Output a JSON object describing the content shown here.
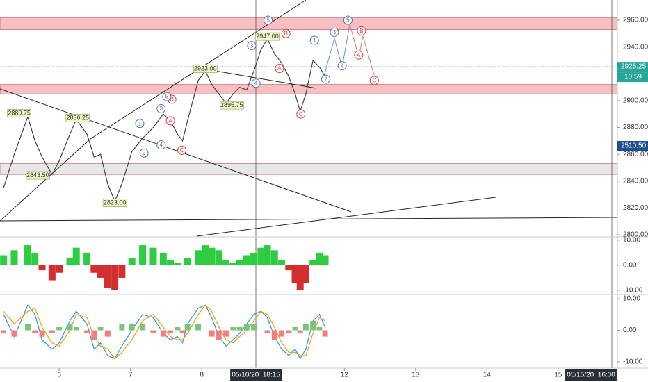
{
  "chart_data": [
    {
      "type": "line",
      "color": "#3f3f3f",
      "x": [
        0.22,
        0.37,
        0.56,
        0.66,
        0.76,
        0.9,
        1.0,
        1.15,
        1.24,
        1.39,
        1.49,
        1.58,
        1.68,
        1.78,
        1.88,
        2.02,
        2.17,
        2.32,
        2.46,
        2.56,
        2.66,
        2.73,
        2.8,
        2.95,
        3.05,
        3.14,
        3.24,
        3.34,
        3.44,
        3.53,
        3.63,
        3.73,
        3.83,
        3.92,
        4.02,
        4.12,
        4.22,
        4.31,
        4.38,
        4.46,
        4.56,
        4.65,
        4.73
      ],
      "values": [
        2835,
        2860,
        2888,
        2870,
        2858,
        2845,
        2855,
        2875,
        2886,
        2875,
        2858,
        2860,
        2838,
        2825,
        2838,
        2862,
        2872,
        2880,
        2890,
        2885,
        2875,
        2870,
        2885,
        2915,
        2922,
        2912,
        2905,
        2898,
        2905,
        2910,
        2908,
        2922,
        2938,
        2946,
        2935,
        2928,
        2918,
        2905,
        2892,
        2905,
        2930,
        2925,
        2918
      ],
      "xlim": [
        0.17,
        8.83
      ],
      "xticks": [
        {
          "value": 1,
          "label": "6"
        },
        {
          "value": 2,
          "label": "7"
        },
        {
          "value": 3,
          "label": "8"
        },
        {
          "value": 5,
          "label": "12"
        },
        {
          "value": 6,
          "label": "13"
        },
        {
          "value": 7,
          "label": "14"
        },
        {
          "value": 8,
          "label": "15"
        }
      ],
      "cursor_labels": [
        {
          "value": 3.76,
          "label": "05/10/20  18:15"
        },
        {
          "value": 8.46,
          "label": "05/15/20  16:00"
        }
      ],
      "ylim": [
        2799,
        2975
      ],
      "yticks": [
        {
          "value": 2800,
          "label": "2800.00"
        },
        {
          "value": 2820,
          "label": "2820.00"
        },
        {
          "value": 2840,
          "label": "2840.00"
        },
        {
          "value": 2860,
          "label": "2860.00"
        },
        {
          "value": 2880,
          "label": "2880.00"
        },
        {
          "value": 2900,
          "label": "2900.00"
        },
        {
          "value": 2920,
          "label": "2920.00"
        },
        {
          "value": 2940,
          "label": "2940.00"
        },
        {
          "value": 2960,
          "label": "2960.00"
        }
      ],
      "zones": [
        {
          "from": 2953,
          "to": 2962,
          "color": "#f4b4b6"
        },
        {
          "from": 2905,
          "to": 2912,
          "color": "#f4b4b6"
        },
        {
          "from": 2845,
          "to": 2853,
          "color": "#e3e3e3"
        }
      ],
      "last_price": {
        "value": 2925.25,
        "label": "2925.25"
      },
      "countdown": "10:59",
      "other_price": "2510.50",
      "price_labels": [
        {
          "x": 0.44,
          "value": 2889.75,
          "label": "2889.75"
        },
        {
          "x": 1.26,
          "value": 2886.25,
          "label": "2886.25"
        },
        {
          "x": 0.7,
          "value": 2843.5,
          "label": "2843.50"
        },
        {
          "x": 1.78,
          "value": 2823.0,
          "label": "2823.00"
        },
        {
          "x": 3.05,
          "value": 2923.0,
          "label": "2923.00"
        },
        {
          "x": 3.42,
          "value": 2895.75,
          "label": "2895.75"
        },
        {
          "x": 3.92,
          "value": 2947.0,
          "label": "2947.00"
        }
      ],
      "wave_labels": [
        {
          "label": "5",
          "x": 3.93,
          "y": 2960,
          "color": "#5a6fa8"
        },
        {
          "label": "B",
          "x": 4.18,
          "y": 2950,
          "color": "#e53935"
        },
        {
          "label": "A",
          "x": 4.09,
          "y": 2924,
          "color": "#e53935"
        },
        {
          "label": "C",
          "x": 4.39,
          "y": 2890,
          "color": "#e53935"
        },
        {
          "label": "1",
          "x": 4.58,
          "y": 2945,
          "color": "#5a6fa8"
        },
        {
          "label": "3",
          "x": 4.86,
          "y": 2951,
          "color": "#5a6fa8"
        },
        {
          "label": "5",
          "x": 5.05,
          "y": 2960,
          "color": "#5a6fa8"
        },
        {
          "label": "B",
          "x": 5.24,
          "y": 2952,
          "color": "#e53935"
        },
        {
          "label": "A",
          "x": 5.2,
          "y": 2934,
          "color": "#e53935"
        },
        {
          "label": "4",
          "x": 4.97,
          "y": 2926,
          "color": "#5a6fa8"
        },
        {
          "label": "2",
          "x": 4.74,
          "y": 2916,
          "color": "#5a6fa8"
        },
        {
          "label": "C",
          "x": 5.42,
          "y": 2915,
          "color": "#e53935"
        },
        {
          "label": "3",
          "x": 3.7,
          "y": 2941,
          "color": "#5a6fa8"
        },
        {
          "label": "4",
          "x": 3.76,
          "y": 2913,
          "color": "#5a6fa8"
        },
        {
          "label": "1",
          "x": 2.13,
          "y": 2883,
          "color": "#5a6fa8"
        },
        {
          "label": "2",
          "x": 2.19,
          "y": 2861,
          "color": "#5a6fa8"
        },
        {
          "label": "3",
          "x": 2.43,
          "y": 2894,
          "color": "#5a6fa8"
        },
        {
          "label": "4",
          "x": 2.43,
          "y": 2867,
          "color": "#5a6fa8"
        },
        {
          "label": "A",
          "x": 2.56,
          "y": 2885,
          "color": "#e53935"
        },
        {
          "label": "B",
          "x": 2.58,
          "y": 2901,
          "color": "#e53935"
        },
        {
          "label": "C",
          "x": 2.72,
          "y": 2863,
          "color": "#e53935"
        },
        {
          "label": "5",
          "x": 2.51,
          "y": 2903,
          "color": "#5a6fa8"
        }
      ]
    },
    {
      "type": "bar",
      "positive_color": "#2ecc40",
      "negative_color": "#d32f2f",
      "x": [
        0.22,
        0.37,
        0.56,
        0.66,
        0.76,
        0.9,
        1.0,
        1.15,
        1.24,
        1.39,
        1.49,
        1.58,
        1.68,
        1.78,
        1.88,
        2.02,
        2.17,
        2.32,
        2.46,
        2.56,
        2.66,
        2.73,
        2.8,
        2.95,
        3.05,
        3.14,
        3.24,
        3.34,
        3.44,
        3.53,
        3.63,
        3.73,
        3.83,
        3.92,
        4.02,
        4.12,
        4.22,
        4.31,
        4.38,
        4.46,
        4.56,
        4.65,
        4.73
      ],
      "values": [
        4,
        6,
        8,
        5,
        -2,
        -6,
        -3,
        3,
        7,
        5,
        -3,
        -5,
        -9,
        -10,
        -5,
        3,
        8,
        7,
        5,
        2,
        1,
        0,
        3,
        6,
        8,
        7,
        6,
        2,
        1,
        2,
        4,
        5,
        7,
        8,
        6,
        2,
        -2,
        -7,
        -10,
        -7,
        2,
        5,
        4
      ],
      "ylim": [
        -11.4,
        10.8
      ],
      "yticks": [
        {
          "value": 10,
          "label": "10.00"
        },
        {
          "value": 0,
          "label": "0.00"
        },
        {
          "value": -10,
          "label": "-10.00"
        }
      ]
    },
    {
      "type": "line",
      "positive_color": "#7cc47c",
      "negative_color": "#f08080",
      "x": [
        0.22,
        0.37,
        0.56,
        0.66,
        0.76,
        0.9,
        1.0,
        1.15,
        1.24,
        1.39,
        1.49,
        1.58,
        1.68,
        1.78,
        1.88,
        2.02,
        2.17,
        2.32,
        2.46,
        2.56,
        2.66,
        2.73,
        2.8,
        2.95,
        3.05,
        3.14,
        3.24,
        3.34,
        3.44,
        3.53,
        3.63,
        3.73,
        3.83,
        3.92,
        4.02,
        4.12,
        4.22,
        4.31,
        4.38,
        4.46,
        4.56,
        4.65,
        4.73
      ],
      "series": [
        {
          "color": "#2196f3",
          "values": [
            5,
            -2,
            8,
            5,
            -3,
            -6,
            -4,
            3,
            6,
            2,
            -6,
            -4,
            -8,
            -9,
            -5,
            0,
            5,
            4,
            -1,
            -3,
            -2,
            -4,
            2,
            7,
            8,
            4,
            -2,
            -5,
            -3,
            -1,
            2,
            5,
            6,
            4,
            -2,
            -6,
            -8,
            -6,
            -9,
            -6,
            3,
            5,
            1
          ]
        },
        {
          "color": "#ff9800",
          "values": [
            6,
            2,
            6,
            7,
            1,
            -4,
            -5,
            0,
            5,
            4,
            -2,
            -5,
            -6,
            -9,
            -7,
            -3,
            3,
            5,
            1,
            -2,
            -3,
            -3,
            -1,
            5,
            8,
            6,
            1,
            -3,
            -4,
            -2,
            0,
            3,
            6,
            5,
            1,
            -4,
            -7,
            -7,
            -8,
            -8,
            -1,
            4,
            3
          ]
        },
        {
          "color": "#7cc47c",
          "bars": true,
          "values": [
            -1,
            -2,
            2,
            -1,
            -2,
            -1,
            1,
            2,
            1,
            -1,
            -3,
            1,
            -2,
            0,
            2,
            2,
            2,
            -1,
            -2,
            -1,
            1,
            -1,
            2,
            2,
            0,
            -2,
            -3,
            -2,
            1,
            1,
            2,
            2,
            0,
            -1,
            -3,
            -2,
            -1,
            1,
            -1,
            2,
            3,
            1,
            -2
          ]
        }
      ],
      "ylim": [
        -12,
        10.9
      ],
      "yticks": [
        {
          "value": 10,
          "label": "10.00"
        },
        {
          "value": 0,
          "label": "0.00"
        },
        {
          "value": -10,
          "label": "-10.00"
        }
      ]
    }
  ]
}
